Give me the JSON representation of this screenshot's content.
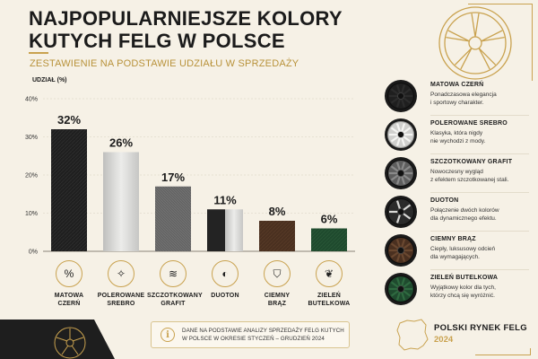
{
  "header": {
    "title_line1": "NAJPOPULARNIEJSZE KOLORY",
    "title_line2": "KUTYCH FELG W POLSCE",
    "subtitle": "ZESTAWIENIE NA PODSTAWIE UDZIAŁU W SPRZEDAŻY"
  },
  "chart_data": {
    "type": "bar",
    "ylabel": "UDZIAŁ (%)",
    "categories": [
      "MATOWA CZERŃ",
      "POLEROWANE SREBRO",
      "SZCZOTKOWANY GRAFIT",
      "DUOTON",
      "CIEMNY BRĄZ",
      "ZIELEŃ BUTELKOWA"
    ],
    "values": [
      32,
      26,
      17,
      11,
      8,
      6
    ],
    "value_labels": [
      "32%",
      "26%",
      "17%",
      "11%",
      "8%",
      "6%"
    ],
    "ylim": [
      0,
      40
    ],
    "yticks": [
      0,
      10,
      20,
      30,
      40
    ],
    "ytick_labels": [
      "0%",
      "10%",
      "20%",
      "30%",
      "40%"
    ],
    "grid": true,
    "colors": [
      "#1f1f1f",
      "#d6d6d4",
      "#6a6a6a",
      "duoton",
      "#4a3020",
      "#1f4a2e"
    ]
  },
  "icons": [
    {
      "icon": "percent-icon",
      "glyph": "%",
      "label_line1": "MATOWA",
      "label_line2": "CZERŃ"
    },
    {
      "icon": "sparkle-icon",
      "glyph": "✧",
      "label_line1": "POLEROWANE",
      "label_line2": "SREBRO"
    },
    {
      "icon": "brush-texture-icon",
      "glyph": "≋",
      "label_line1": "SZCZOTKOWANY",
      "label_line2": "GRAFIT"
    },
    {
      "icon": "half-circle-icon",
      "glyph": "◐",
      "label_line1": "DUOTON",
      "label_line2": ""
    },
    {
      "icon": "shield-icon",
      "glyph": "⛉",
      "label_line1": "CIEMNY",
      "label_line2": "BRĄZ"
    },
    {
      "icon": "leaf-icon",
      "glyph": "❦",
      "label_line1": "ZIELEŃ",
      "label_line2": "BUTELKOWA"
    }
  ],
  "legend": [
    {
      "title": "MATOWA CZERŃ",
      "desc_line1": "Ponadczasowa elegancja",
      "desc_line2": "i sportowy charakter.",
      "color": "#1f1f1f"
    },
    {
      "title": "POLEROWANE SREBRO",
      "desc_line1": "Klasyka, która nigdy",
      "desc_line2": "nie wychodzi z mody.",
      "color": "#cfcfcd"
    },
    {
      "title": "SZCZOTKOWANY GRAFIT",
      "desc_line1": "Nowoczesny wygląd",
      "desc_line2": "z efektem szczotkowanej stali.",
      "color": "#5e5e5e"
    },
    {
      "title": "DUOTON",
      "desc_line1": "Połączenie dwóch kolorów",
      "desc_line2": "dla dynamicznego efektu.",
      "color": "#2a2a2a"
    },
    {
      "title": "CIEMNY BRĄZ",
      "desc_line1": "Ciepły, luksusowy odcień",
      "desc_line2": "dla wymagających.",
      "color": "#4a3020"
    },
    {
      "title": "ZIELEŃ BUTELKOWA",
      "desc_line1": "Wyjątkowy kolor dla tych,",
      "desc_line2": "którzy chcą się wyróżnić.",
      "color": "#1f4a2e"
    }
  ],
  "footer": {
    "note_line1": "DANE NA PODSTAWIE ANALIZY SPRZEDAŻY FELG KUTYCH",
    "note_line2": "W POLSCE W OKRESIE STYCZEŃ – GRUDZIEŃ 2024",
    "note_icon": "i",
    "brand_title": "POLSKI RYNEK FELG",
    "brand_year": "2024"
  },
  "colors": {
    "accent": "#c9a24f",
    "background": "#f6f1e6",
    "dark": "#1e1e1e"
  }
}
